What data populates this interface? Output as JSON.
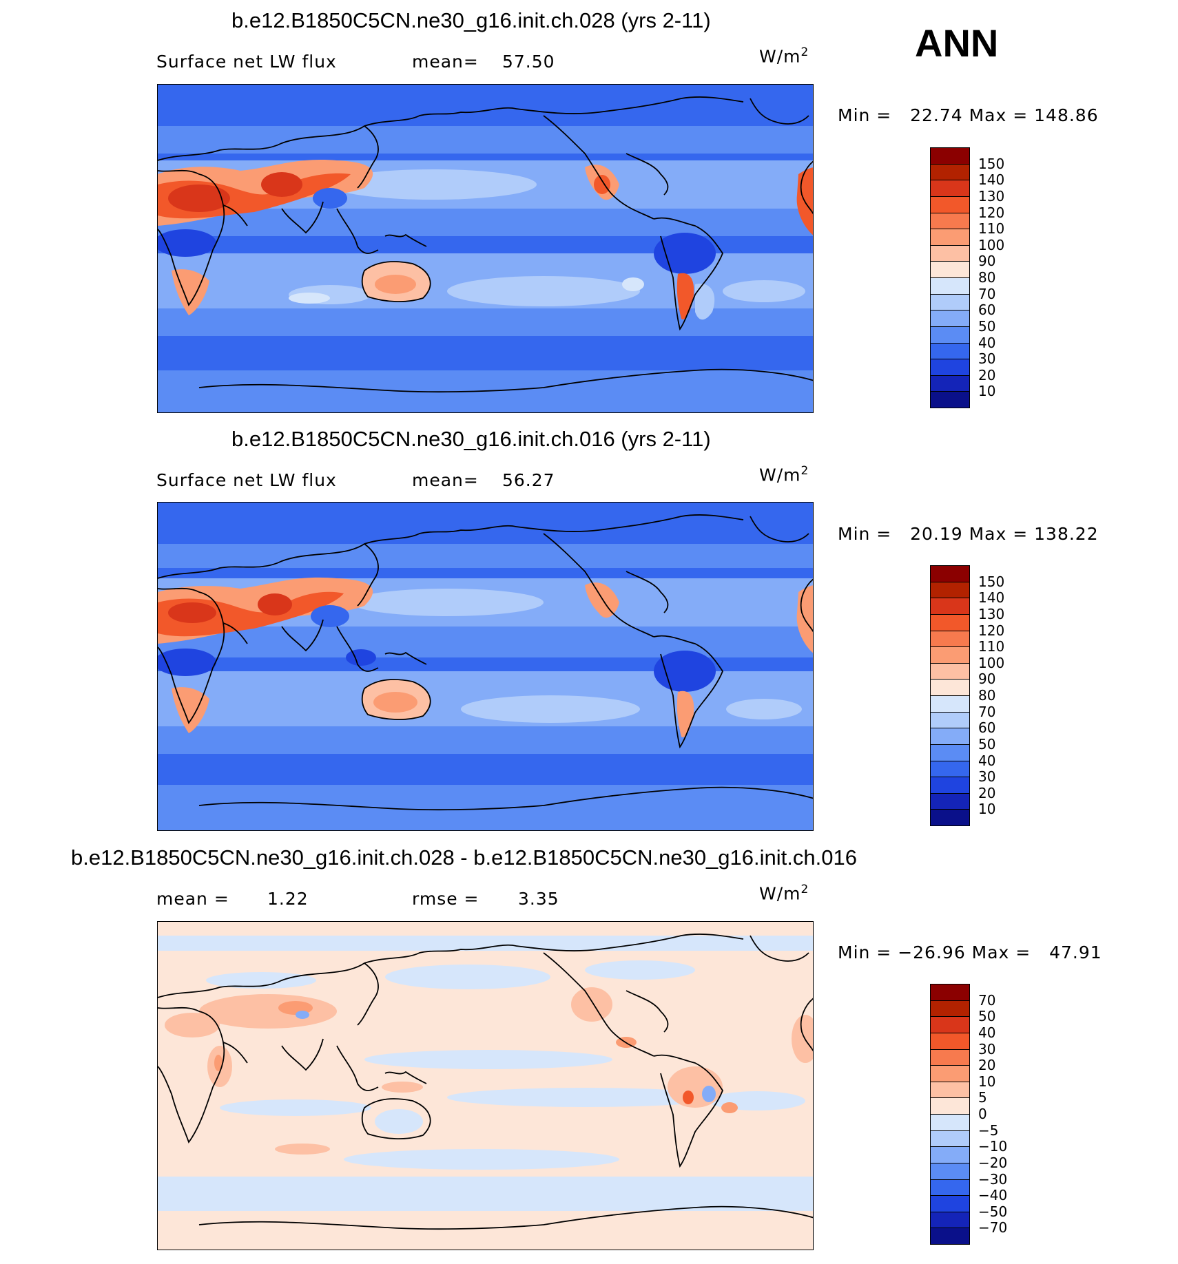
{
  "season": "ANN",
  "panels": [
    {
      "title": "b.e12.B1850C5CN.ne30_g16.init.ch.028 (yrs 2-11)",
      "left_label": "Surface net LW flux",
      "stat_label": "mean=",
      "stat_value": "57.50",
      "units": "W/m",
      "units_exp": "2",
      "minmax": "Min =   22.74 Max = 148.86",
      "colorbar": {
        "labels": [
          "150",
          "140",
          "130",
          "120",
          "110",
          "100",
          "90",
          "80",
          "70",
          "60",
          "50",
          "40",
          "30",
          "20",
          "10"
        ],
        "colors": [
          "#8b0000",
          "#b22200",
          "#d9361a",
          "#f2582a",
          "#f77a4e",
          "#fb9c73",
          "#fdc0a4",
          "#fde6d8",
          "#d6e6fb",
          "#b0ccfa",
          "#84acf8",
          "#5b8cf4",
          "#3567ee",
          "#1f44e0",
          "#1424b8",
          "#0a108a"
        ]
      }
    },
    {
      "title": "b.e12.B1850C5CN.ne30_g16.init.ch.016 (yrs 2-11)",
      "left_label": "Surface net LW flux",
      "stat_label": "mean=",
      "stat_value": "56.27",
      "units": "W/m",
      "units_exp": "2",
      "minmax": "Min =   20.19 Max = 138.22",
      "colorbar": {
        "labels": [
          "150",
          "140",
          "130",
          "120",
          "110",
          "100",
          "90",
          "80",
          "70",
          "60",
          "50",
          "40",
          "30",
          "20",
          "10"
        ],
        "colors": [
          "#8b0000",
          "#b22200",
          "#d9361a",
          "#f2582a",
          "#f77a4e",
          "#fb9c73",
          "#fdc0a4",
          "#fde6d8",
          "#d6e6fb",
          "#b0ccfa",
          "#84acf8",
          "#5b8cf4",
          "#3567ee",
          "#1f44e0",
          "#1424b8",
          "#0a108a"
        ]
      }
    },
    {
      "title": "b.e12.B1850C5CN.ne30_g16.init.ch.028 - b.e12.B1850C5CN.ne30_g16.init.ch.016",
      "left_label": "mean =",
      "left_value": "1.22",
      "stat_label": "rmse =",
      "stat_value": "3.35",
      "units": "W/m",
      "units_exp": "2",
      "minmax": "Min = −26.96 Max =   47.91",
      "colorbar": {
        "labels": [
          "70",
          "50",
          "40",
          "30",
          "20",
          "10",
          "5",
          "0",
          "−5",
          "−10",
          "−20",
          "−30",
          "−40",
          "−50",
          "−70"
        ],
        "colors": [
          "#8b0000",
          "#b22200",
          "#d9361a",
          "#f2582a",
          "#f77a4e",
          "#fb9c73",
          "#fdc0a4",
          "#fde6d8",
          "#d6e6fb",
          "#b0ccfa",
          "#84acf8",
          "#5b8cf4",
          "#3567ee",
          "#1f44e0",
          "#1424b8",
          "#0a108a"
        ]
      }
    }
  ],
  "map_palettes": {
    "panel1": [
      "#3567ee",
      "#5b8cf4",
      "#84acf8",
      "#b0ccfa",
      "#d6e6fb",
      "#fde6d8",
      "#fb9c73",
      "#f2582a",
      "#1f44e0"
    ],
    "panel3": [
      "#fde6d8",
      "#d6e6fb",
      "#fdc0a4",
      "#b0ccfa",
      "#fb9c73",
      "#84acf8"
    ]
  }
}
